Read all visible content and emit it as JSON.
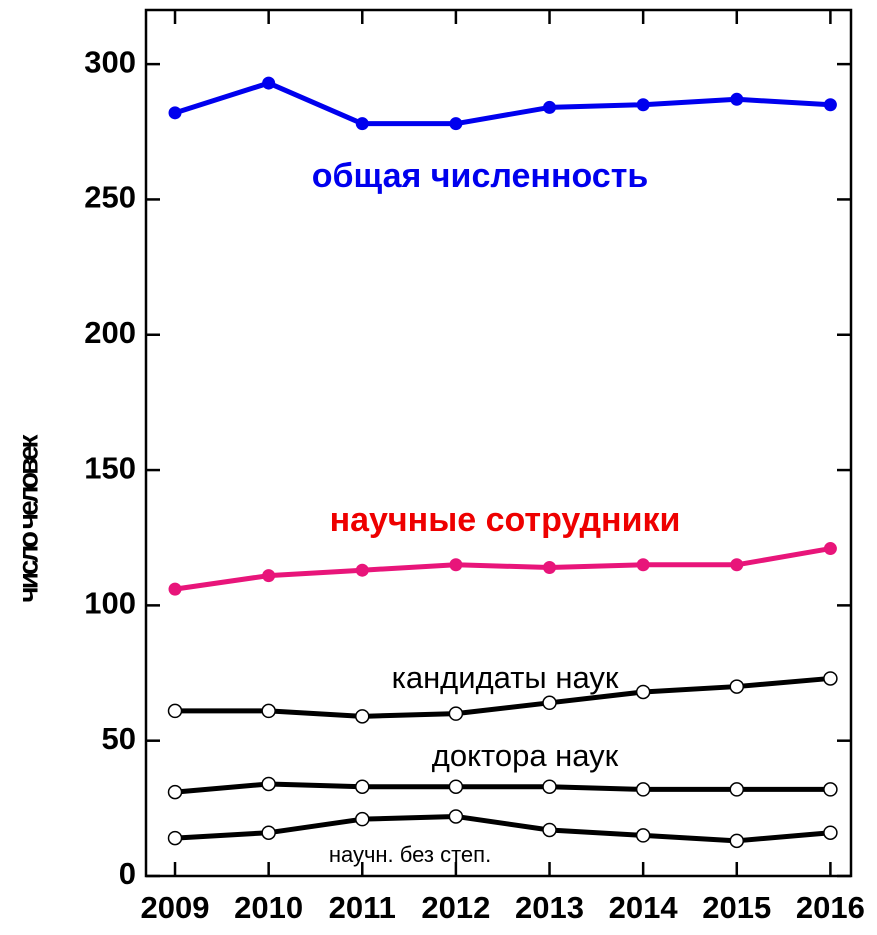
{
  "chart_data": {
    "type": "line",
    "ylabel": "число человек",
    "x": [
      2009,
      2010,
      2011,
      2012,
      2013,
      2014,
      2015,
      2016
    ],
    "xlim": [
      2008.69,
      2016.22
    ],
    "xticks": [
      2009,
      2010,
      2011,
      2012,
      2013,
      2014,
      2015,
      2016
    ],
    "ylim": [
      0,
      320
    ],
    "yticks": [
      0,
      50,
      100,
      150,
      200,
      250,
      300
    ],
    "series": [
      {
        "name": "общая численность",
        "color": "#0000ee",
        "marker": "filled",
        "values": [
          282,
          293,
          278,
          278,
          284,
          285,
          287,
          285
        ]
      },
      {
        "name": "научные сотрудники",
        "color": "#e8157a",
        "label_color": "#ee0000",
        "marker": "filled",
        "values": [
          106,
          111,
          113,
          115,
          114,
          115,
          115,
          121
        ]
      },
      {
        "name": "кандидаты наук",
        "color": "#000000",
        "marker": "open",
        "values": [
          61,
          61,
          59,
          60,
          64,
          68,
          70,
          73
        ]
      },
      {
        "name": "доктора наук",
        "color": "#000000",
        "marker": "open",
        "values": [
          31,
          34,
          33,
          33,
          33,
          32,
          32,
          32
        ]
      },
      {
        "name": "научн. без степ.",
        "color": "#000000",
        "marker": "open",
        "values": [
          14,
          16,
          21,
          22,
          17,
          15,
          13,
          16
        ]
      }
    ]
  }
}
